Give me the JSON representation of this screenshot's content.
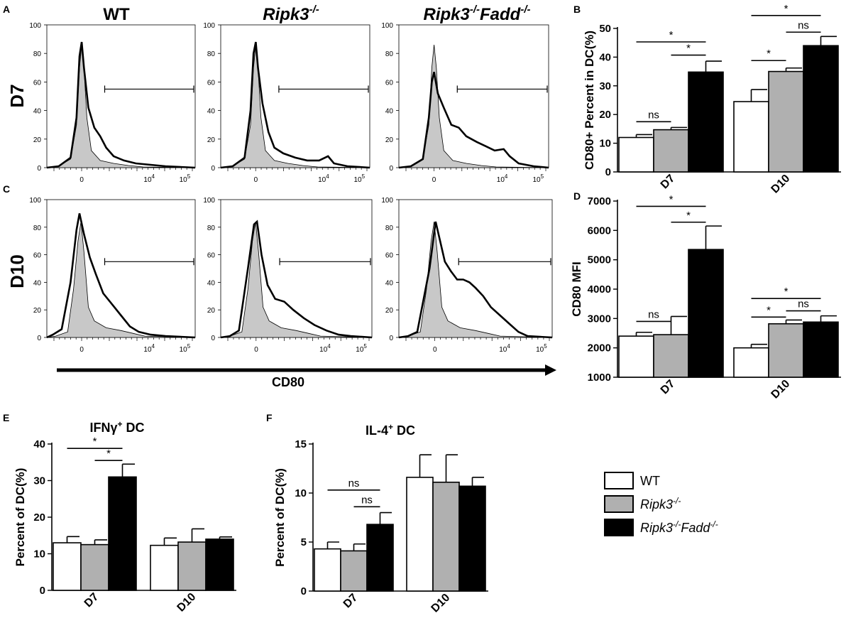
{
  "colors": {
    "wt": "#ffffff",
    "ripk3": "#b0b0b0",
    "dko": "#000000",
    "iso": "#c8c8c8",
    "line": "#000000"
  },
  "histograms": {
    "columns": [
      {
        "label": "WT",
        "base": "",
        "sup": ""
      },
      {
        "label": "Ripk3",
        "base": "Ripk3",
        "sup": "-/-"
      },
      {
        "label": "Ripk3-/-Fadd-/-",
        "base": "Ripk3",
        "sup": "-/-",
        "base2": "Fadd",
        "sup2": "-/-"
      }
    ],
    "rows": [
      {
        "panel": "A",
        "label": "D7",
        "yticks": [
          "100",
          "80",
          "60",
          "40",
          "20",
          "0"
        ]
      },
      {
        "panel": "C",
        "label": "D10",
        "yticks": [
          "100",
          "80",
          "60",
          "40",
          "20",
          "0"
        ]
      }
    ],
    "xaxis_label": "CD80",
    "xtick_zero": "0",
    "xtick_base": "10",
    "xtick_exp4": "4",
    "xtick_exp5": "5"
  },
  "legend": {
    "items": [
      {
        "label": "WT",
        "color": "#ffffff",
        "italic": false,
        "base": "WT"
      },
      {
        "label": "Ripk3-/-",
        "color": "#b0b0b0",
        "italic": true,
        "base": "Ripk3",
        "sup": "-/-"
      },
      {
        "label": "Ripk3-/-Fadd-/-",
        "color": "#000000",
        "italic": true,
        "base": "Ripk3",
        "sup": "-/-",
        "base2": "Fadd",
        "sup2": "-/-"
      }
    ]
  },
  "chart_data": [
    {
      "panel": "B",
      "type": "bar",
      "title": "",
      "ylabel": "CD80+ Percent in DC(%)",
      "xlabel": "",
      "categories": [
        "D7",
        "D10"
      ],
      "ylim": [
        0,
        50
      ],
      "yticks": [
        0,
        10,
        20,
        30,
        40,
        50
      ],
      "series": [
        {
          "name": "WT",
          "values": [
            12,
            24.5
          ],
          "errors": [
            1,
            4.2
          ]
        },
        {
          "name": "Ripk3-/-",
          "values": [
            14.7,
            35
          ],
          "errors": [
            0.8,
            1.2
          ]
        },
        {
          "name": "Ripk3-/-Fadd-/-",
          "values": [
            34.8,
            44
          ],
          "errors": [
            3.8,
            3.2
          ]
        }
      ],
      "annotations": [
        {
          "group": 0,
          "from": 0,
          "to": 1,
          "y": 17.5,
          "text": "ns"
        },
        {
          "group": 0,
          "from": 0,
          "to": 2,
          "y": 45.3,
          "text": "*"
        },
        {
          "group": 0,
          "from": 1,
          "to": 2,
          "y": 40.7,
          "text": "*"
        },
        {
          "group": 1,
          "from": 0,
          "to": 1,
          "y": 38.8,
          "text": "*"
        },
        {
          "group": 1,
          "from": 1,
          "to": 2,
          "y": 48.7,
          "text": "ns"
        },
        {
          "group": 1,
          "from": 0,
          "to": 2,
          "y": 54.5,
          "text": "*"
        }
      ]
    },
    {
      "panel": "D",
      "type": "bar",
      "title": "",
      "ylabel": "CD80 MFI",
      "xlabel": "",
      "categories": [
        "D7",
        "D10"
      ],
      "ylim": [
        1000,
        7000
      ],
      "yticks": [
        1000,
        2000,
        3000,
        4000,
        5000,
        6000,
        7000
      ],
      "series": [
        {
          "name": "WT",
          "values": [
            2400,
            2000
          ],
          "errors": [
            130,
            120
          ]
        },
        {
          "name": "Ripk3-/-",
          "values": [
            2450,
            2820
          ],
          "errors": [
            620,
            130
          ]
        },
        {
          "name": "Ripk3-/-Fadd-/-",
          "values": [
            5350,
            2880
          ],
          "errors": [
            800,
            210
          ]
        }
      ],
      "annotations": [
        {
          "group": 0,
          "from": 0,
          "to": 1,
          "y": 2900,
          "text": "ns"
        },
        {
          "group": 0,
          "from": 0,
          "to": 2,
          "y": 6820,
          "text": "*"
        },
        {
          "group": 0,
          "from": 1,
          "to": 2,
          "y": 6280,
          "text": "*"
        },
        {
          "group": 1,
          "from": 0,
          "to": 1,
          "y": 3050,
          "text": "*"
        },
        {
          "group": 1,
          "from": 1,
          "to": 2,
          "y": 3260,
          "text": "ns"
        },
        {
          "group": 1,
          "from": 0,
          "to": 2,
          "y": 3680,
          "text": "*"
        }
      ]
    },
    {
      "panel": "E",
      "type": "bar",
      "title": "IFNγ+ DC",
      "title_base": "IFNγ",
      "title_sup": "+",
      "title_rest": " DC",
      "ylabel": "Percent of DC(%)",
      "xlabel": "",
      "categories": [
        "D7",
        "D10"
      ],
      "ylim": [
        0,
        40
      ],
      "yticks": [
        0,
        10,
        20,
        30,
        40
      ],
      "series": [
        {
          "name": "WT",
          "values": [
            13,
            12.3
          ],
          "errors": [
            1.7,
            2
          ]
        },
        {
          "name": "Ripk3-/-",
          "values": [
            12.5,
            13.2
          ],
          "errors": [
            1.3,
            3.6
          ]
        },
        {
          "name": "Ripk3-/-Fadd-/-",
          "values": [
            31,
            14
          ],
          "errors": [
            3.5,
            0.6
          ]
        }
      ],
      "annotations": [
        {
          "group": 0,
          "from": 0,
          "to": 2,
          "y": 38.8,
          "text": "*"
        },
        {
          "group": 0,
          "from": 1,
          "to": 2,
          "y": 35.5,
          "text": "*"
        }
      ]
    },
    {
      "panel": "F",
      "type": "bar",
      "title": "IL-4+ DC",
      "title_base": "IL-4",
      "title_sup": "+",
      "title_rest": " DC",
      "ylabel": "Percent of DC(%)",
      "xlabel": "",
      "categories": [
        "D7",
        "D10"
      ],
      "ylim": [
        0,
        15
      ],
      "yticks": [
        "0",
        "5",
        "10",
        "15"
      ],
      "series": [
        {
          "name": "WT",
          "values": [
            4.3,
            11.6
          ],
          "errors": [
            0.7,
            2.3
          ]
        },
        {
          "name": "Ripk3-/-",
          "values": [
            4.1,
            11.1
          ],
          "errors": [
            0.7,
            2.8
          ]
        },
        {
          "name": "Ripk3-/-Fadd-/-",
          "values": [
            6.8,
            10.7
          ],
          "errors": [
            1.2,
            0.9
          ]
        }
      ],
      "annotations": [
        {
          "group": 0,
          "from": 0,
          "to": 2,
          "y": 10.3,
          "text": "ns"
        },
        {
          "group": 0,
          "from": 1,
          "to": 2,
          "y": 8.6,
          "text": "ns"
        }
      ]
    }
  ]
}
